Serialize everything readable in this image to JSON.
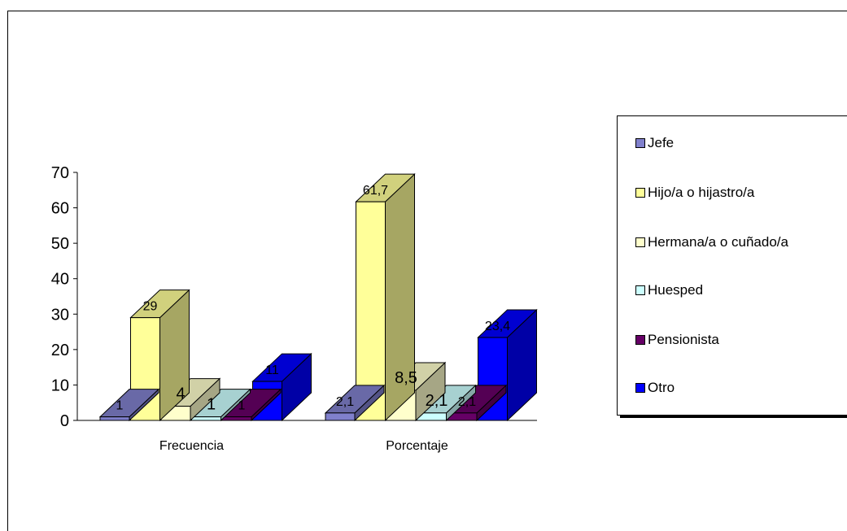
{
  "chart_data": {
    "type": "bar",
    "style": "3d-clustered",
    "categories": [
      "Frecuencia",
      "Porcentaje"
    ],
    "series": [
      {
        "name": "Jefe",
        "color": "#8080cc",
        "values": [
          1,
          2.1
        ],
        "labels": [
          "1",
          "2,1"
        ]
      },
      {
        "name": "Hijo/a o hijastro/a",
        "color": "#ffff99",
        "values": [
          29,
          61.7
        ],
        "labels": [
          "29",
          "61,7"
        ]
      },
      {
        "name": "Hermana/a o cuñado/a",
        "color": "#ffffcc",
        "values": [
          4,
          8.5
        ],
        "labels": [
          "4",
          "8,5"
        ]
      },
      {
        "name": "Huesped",
        "color": "#ccffff",
        "values": [
          1,
          2.1
        ],
        "labels": [
          "1",
          "2,1"
        ]
      },
      {
        "name": "Pensionista",
        "color": "#660066",
        "values": [
          1,
          2.1
        ],
        "labels": [
          "1",
          "2,1"
        ]
      },
      {
        "name": "Otro",
        "color": "#0000ff",
        "values": [
          11,
          23.4
        ],
        "labels": [
          "11",
          "23,4"
        ]
      }
    ],
    "yticks": [
      "0",
      "10",
      "20",
      "30",
      "40",
      "50",
      "60",
      "70"
    ],
    "ylim": [
      0,
      70
    ],
    "legend_position": "right",
    "grid": false
  }
}
